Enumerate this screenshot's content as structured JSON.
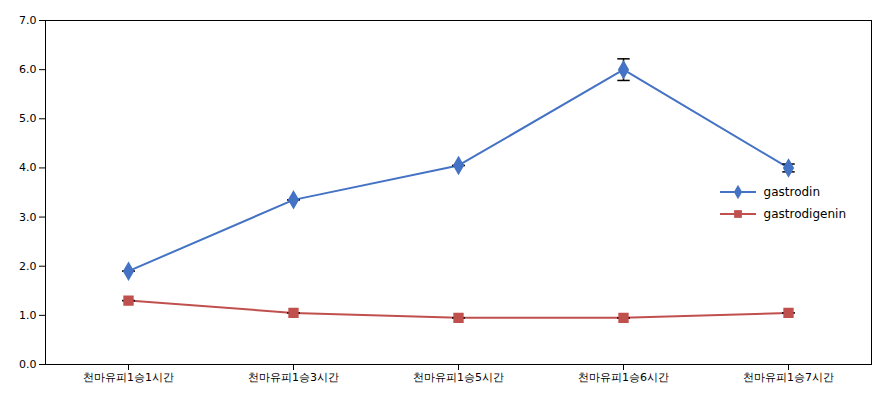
{
  "chart_data": {
    "type": "line",
    "categories": [
      "천마유피1승1시간",
      "천마유피1승3시간",
      "천마유피1승5시간",
      "천마유피1승6시간",
      "천마유피1승7시간"
    ],
    "series": [
      {
        "name": "gastrodin",
        "color": "#4472C4",
        "marker": "diamond",
        "values": [
          1.9,
          3.35,
          4.05,
          6.0,
          4.0
        ],
        "errors": [
          0.0,
          0.0,
          0.0,
          0.22,
          0.08
        ]
      },
      {
        "name": "gastrodigenin",
        "color": "#C0504D",
        "marker": "square",
        "values": [
          1.3,
          1.05,
          0.95,
          0.95,
          1.05
        ],
        "errors": [
          0.0,
          0.0,
          0.0,
          0.0,
          0.0
        ]
      }
    ],
    "ylim": [
      0,
      7
    ],
    "yticks": [
      0,
      1,
      2,
      3,
      4,
      5,
      6,
      7
    ],
    "grid": false,
    "legend": "right"
  }
}
